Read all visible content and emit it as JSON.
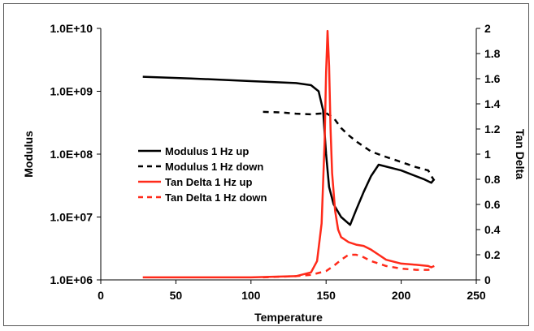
{
  "chart_data": {
    "type": "line",
    "title": "",
    "xlabel": "Temperature",
    "ylabel": "Modulus",
    "y2label": "Tan Delta",
    "xlim": [
      0,
      250
    ],
    "ylim": [
      1000000,
      10000000000
    ],
    "yscale": "log",
    "y2lim": [
      0,
      2
    ],
    "grid": false,
    "legend_position": "middle-left",
    "x_ticks": [
      "0",
      "50",
      "100",
      "150",
      "200",
      "250"
    ],
    "y_ticks": [
      "1.0E+06",
      "1.0E+07",
      "1.0E+08",
      "1.0E+09",
      "1.0E+10"
    ],
    "y2_ticks": [
      "0",
      "0.2",
      "0.4",
      "0.6",
      "0.8",
      "1",
      "1.2",
      "1.4",
      "1.6",
      "1.8",
      "2"
    ],
    "series": [
      {
        "name": "Modulus 1 Hz up",
        "axis": "left",
        "color": "#000000",
        "dash": "solid",
        "x": [
          28,
          60,
          100,
          130,
          140,
          145,
          148,
          150,
          152,
          155,
          160,
          166,
          170,
          175,
          180,
          185,
          200,
          215,
          220,
          222
        ],
        "y": [
          1700000000,
          1600000000,
          1450000000,
          1350000000,
          1250000000,
          1000000000,
          500000000,
          100000000,
          30000000,
          16000000,
          10000000,
          7500000,
          13000000,
          25000000,
          45000000,
          68000000,
          55000000,
          40000000,
          35000000,
          40000000
        ]
      },
      {
        "name": "Modulus 1 Hz down",
        "axis": "left",
        "color": "#000000",
        "dash": "dashed",
        "x": [
          108,
          120,
          130,
          140,
          150,
          155,
          160,
          165,
          170,
          180,
          190,
          200,
          210,
          218,
          220,
          222
        ],
        "y": [
          470000000,
          460000000,
          440000000,
          430000000,
          450000000,
          380000000,
          260000000,
          200000000,
          160000000,
          110000000,
          90000000,
          75000000,
          62000000,
          55000000,
          45000000,
          38000000
        ]
      },
      {
        "name": "Tan Delta 1 Hz up",
        "axis": "right",
        "color": "#ff2a1a",
        "dash": "solid",
        "x": [
          28,
          60,
          100,
          130,
          140,
          144,
          147,
          149,
          150,
          151,
          152,
          153,
          154,
          156,
          158,
          160,
          165,
          170,
          175,
          180,
          185,
          190,
          200,
          210,
          218,
          220,
          222
        ],
        "y": [
          0.02,
          0.02,
          0.02,
          0.03,
          0.06,
          0.15,
          0.45,
          1.1,
          1.65,
          1.98,
          1.7,
          1.2,
          0.85,
          0.55,
          0.4,
          0.34,
          0.3,
          0.28,
          0.27,
          0.24,
          0.2,
          0.16,
          0.13,
          0.12,
          0.11,
          0.1,
          0.11
        ]
      },
      {
        "name": "Tan Delta 1 Hz down",
        "axis": "right",
        "color": "#ff2a1a",
        "dash": "dashed",
        "x": [
          108,
          130,
          140,
          150,
          155,
          160,
          165,
          170,
          175,
          180,
          190,
          200,
          210,
          218,
          222
        ],
        "y": [
          0.02,
          0.03,
          0.04,
          0.07,
          0.11,
          0.16,
          0.2,
          0.2,
          0.18,
          0.15,
          0.11,
          0.09,
          0.08,
          0.08,
          0.09
        ]
      }
    ]
  }
}
